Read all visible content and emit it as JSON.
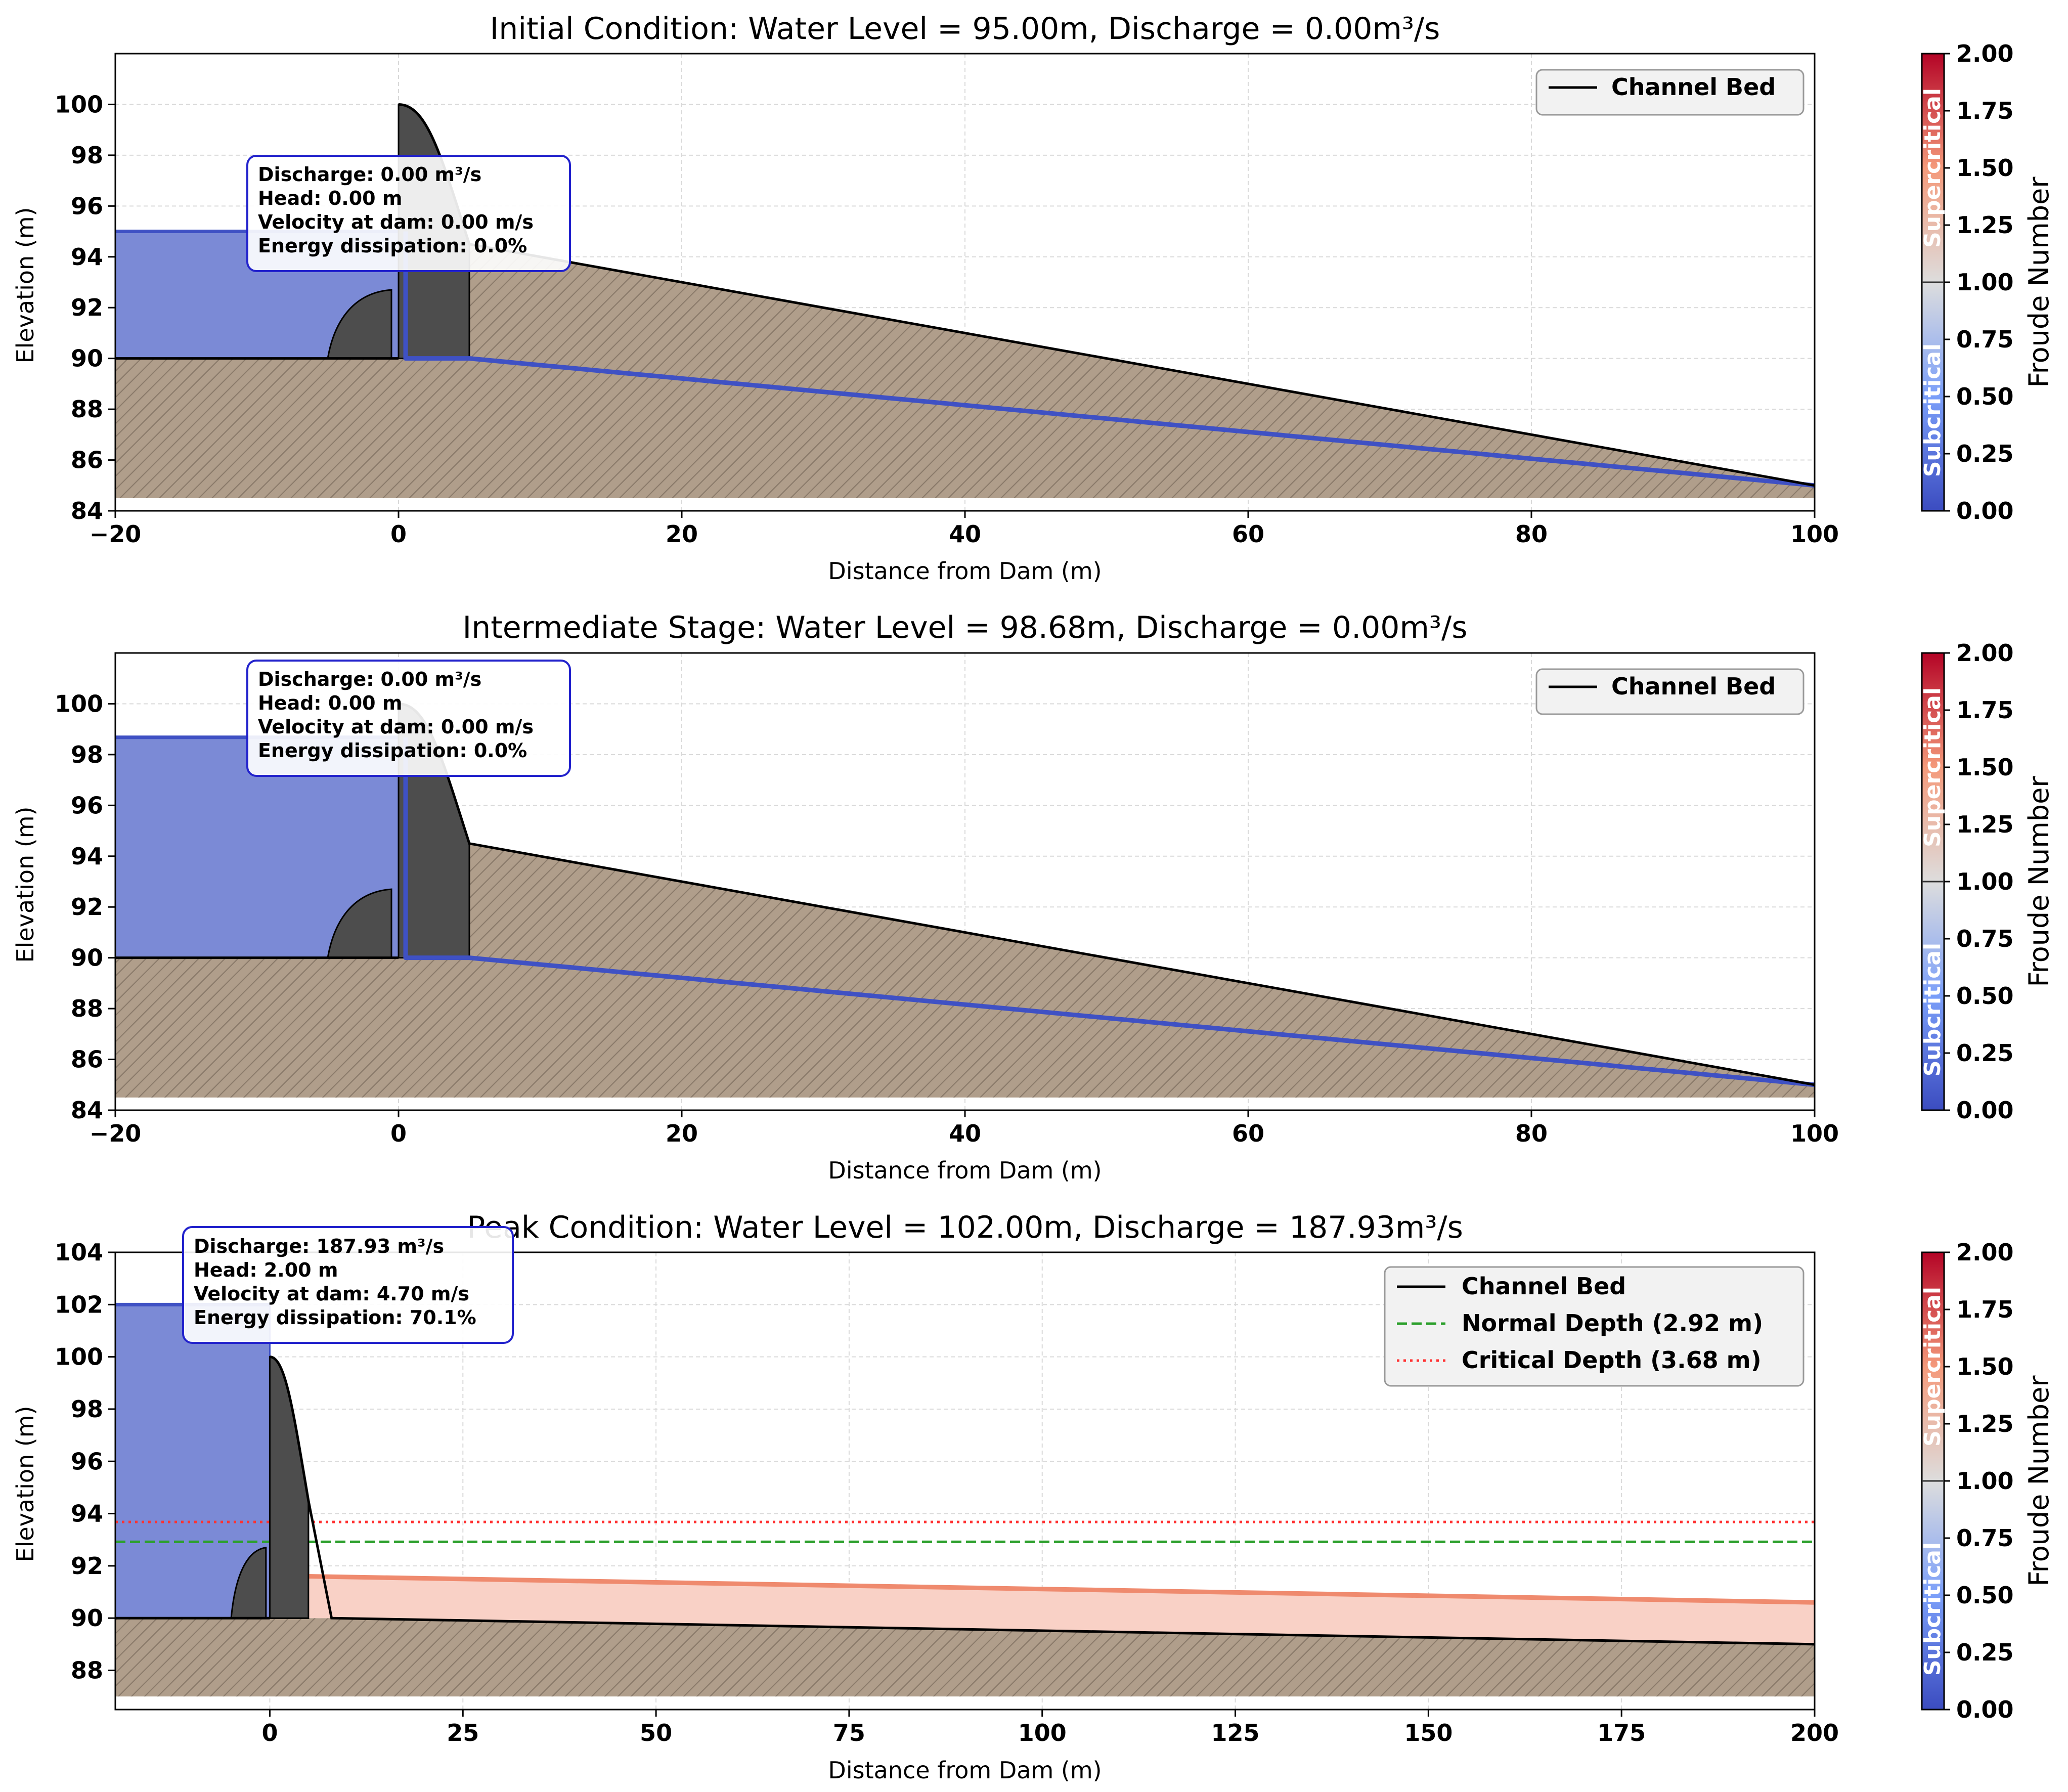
{
  "figure": {
    "colorbar_tick_labels": [
      "0.00",
      "0.25",
      "0.50",
      "0.75",
      "1.00",
      "1.25",
      "1.50",
      "1.75",
      "2.00"
    ],
    "colorbar_label": "Froude Number",
    "colorbar_range": [
      0,
      2
    ],
    "colorbar_text_low": "Subcritical",
    "colorbar_text_high": "Supercritical",
    "colors": {
      "water": "#7b8ad6",
      "water_edge": "#3f51c4",
      "ground": "#b09e8b",
      "dam": "#4d4d4d",
      "bed_line": "#000000",
      "supercritical_fill": "#f9d1c6",
      "supercritical_line": "#ef8a6e",
      "normal_depth": "#2ca02c",
      "critical_depth": "#ff3333",
      "annotation_border": "#2222cc",
      "cmap_low": "#3b4cc0",
      "cmap_mid": "#dddddd",
      "cmap_high": "#b40426"
    }
  },
  "chart_data": [
    {
      "type": "area",
      "title": "Initial Condition: Water Level = 95.00m, Discharge = 0.00m³/s",
      "xlabel": "Distance from Dam (m)",
      "ylabel": "Elevation (m)",
      "xlim": [
        -20,
        100
      ],
      "ylim": [
        84,
        102
      ],
      "xticks": [
        -20,
        0,
        20,
        40,
        60,
        80,
        100
      ],
      "xtick_labels": [
        "−20",
        "0",
        "20",
        "40",
        "60",
        "80",
        "100"
      ],
      "yticks": [
        84,
        86,
        88,
        90,
        92,
        94,
        96,
        98,
        100
      ],
      "grid": true,
      "legend_position": "top-right",
      "legend": [
        {
          "label": "Channel Bed",
          "style": "solid",
          "color": "#000000"
        }
      ],
      "annotation": [
        "Discharge: 0.00 m³/s",
        "Head: 0.00 m",
        "Velocity at dam: 0.00 m/s",
        "Energy dissipation: 0.0%"
      ],
      "water_level": 95.0,
      "upstream_bed": 90.0,
      "bed_profile": {
        "x": [
          5,
          100
        ],
        "y": [
          94.5,
          85.0
        ]
      },
      "flow_line": {
        "x": [
          0.5,
          5,
          100
        ],
        "y": [
          90.0,
          90.0,
          85.0
        ]
      },
      "ground_bottom": 84.5
    },
    {
      "type": "area",
      "title": "Intermediate Stage: Water Level = 98.68m, Discharge = 0.00m³/s",
      "xlabel": "Distance from Dam (m)",
      "ylabel": "Elevation (m)",
      "xlim": [
        -20,
        100
      ],
      "ylim": [
        84,
        102
      ],
      "xticks": [
        -20,
        0,
        20,
        40,
        60,
        80,
        100
      ],
      "xtick_labels": [
        "−20",
        "0",
        "20",
        "40",
        "60",
        "80",
        "100"
      ],
      "yticks": [
        84,
        86,
        88,
        90,
        92,
        94,
        96,
        98,
        100
      ],
      "grid": true,
      "legend_position": "top-right",
      "legend": [
        {
          "label": "Channel Bed",
          "style": "solid",
          "color": "#000000"
        }
      ],
      "annotation": [
        "Discharge: 0.00 m³/s",
        "Head: 0.00 m",
        "Velocity at dam: 0.00 m/s",
        "Energy dissipation: 0.0%"
      ],
      "water_level": 98.68,
      "upstream_bed": 90.0,
      "bed_profile": {
        "x": [
          5,
          100
        ],
        "y": [
          94.5,
          85.0
        ]
      },
      "flow_line": {
        "x": [
          0.5,
          5,
          100
        ],
        "y": [
          90.0,
          90.0,
          85.0
        ]
      },
      "ground_bottom": 84.5
    },
    {
      "type": "area",
      "title": "Peak Condition: Water Level = 102.00m, Discharge = 187.93m³/s",
      "xlabel": "Distance from Dam (m)",
      "ylabel": "Elevation (m)",
      "xlim": [
        -20,
        200
      ],
      "ylim": [
        86.5,
        104
      ],
      "xticks": [
        0,
        25,
        50,
        75,
        100,
        125,
        150,
        175,
        200
      ],
      "xtick_labels": [
        "0",
        "25",
        "50",
        "75",
        "100",
        "125",
        "150",
        "175",
        "200"
      ],
      "yticks": [
        88,
        90,
        92,
        94,
        96,
        98,
        100,
        102,
        104
      ],
      "grid": true,
      "legend_position": "top-right",
      "legend": [
        {
          "label": "Channel Bed",
          "style": "solid",
          "color": "#000000"
        },
        {
          "label": "Normal Depth (2.92 m)",
          "style": "dashed",
          "color": "#2ca02c"
        },
        {
          "label": "Critical Depth (3.68 m)",
          "style": "dotted",
          "color": "#ff3333"
        }
      ],
      "annotation": [
        "Discharge: 187.93 m³/s",
        "Head: 2.00 m",
        "Velocity at dam: 4.70 m/s",
        "Energy dissipation: 70.1%"
      ],
      "water_level": 102.0,
      "upstream_bed": 90.0,
      "bed_profile": {
        "x": [
          8,
          200
        ],
        "y": [
          90.0,
          89.0
        ]
      },
      "flow_surface": {
        "x": [
          0.5,
          4,
          5,
          200
        ],
        "y": [
          91.5,
          91.5,
          91.6,
          90.6
        ]
      },
      "normal_depth_level": 92.92,
      "critical_depth_level": 93.68,
      "ground_bottom": 87.0
    }
  ]
}
